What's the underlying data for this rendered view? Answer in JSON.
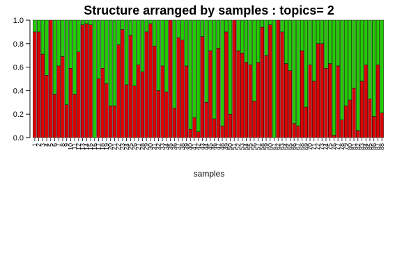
{
  "chart_data": {
    "type": "bar",
    "stacked": true,
    "title": "Structure arranged by samples : topics= 2",
    "xlabel": "samples",
    "ylabel": "",
    "ylim": [
      0,
      1
    ],
    "yticks": [
      "0.0",
      "0.2",
      "0.4",
      "0.6",
      "0.8",
      "1.0"
    ],
    "categories": [
      "1",
      "2",
      "3",
      "4",
      "5",
      "6",
      "7",
      "8",
      "9",
      "10",
      "11",
      "12",
      "13",
      "14",
      "15",
      "16",
      "17",
      "18",
      "19",
      "20",
      "21",
      "22",
      "23",
      "24",
      "25",
      "26",
      "27",
      "28",
      "29",
      "30",
      "31",
      "32",
      "33",
      "34",
      "35",
      "36",
      "37",
      "38",
      "39",
      "40",
      "41",
      "42",
      "43",
      "44",
      "45",
      "46",
      "47",
      "48",
      "49",
      "50",
      "51",
      "52",
      "53",
      "54",
      "55",
      "56",
      "57",
      "58",
      "59",
      "60",
      "61",
      "62",
      "63",
      "64",
      "65",
      "66",
      "67",
      "68",
      "69",
      "70",
      "71",
      "72",
      "73",
      "74",
      "75",
      "76",
      "77",
      "78",
      "79",
      "80",
      "81",
      "82",
      "83",
      "84",
      "85",
      "86",
      "87",
      "88"
    ],
    "series": [
      {
        "color": "#dd0000",
        "values": [
          0.9,
          0.9,
          0.71,
          0.53,
          1.0,
          0.37,
          0.61,
          0.69,
          0.28,
          0.59,
          0.37,
          0.73,
          0.96,
          0.97,
          0.96,
          0.0,
          0.5,
          0.59,
          0.46,
          0.27,
          0.27,
          0.79,
          0.92,
          0.45,
          0.87,
          0.44,
          0.62,
          0.56,
          0.9,
          0.97,
          0.78,
          0.4,
          0.61,
          0.39,
          1.0,
          0.25,
          0.85,
          0.83,
          0.61,
          0.07,
          0.17,
          0.05,
          0.86,
          0.3,
          0.74,
          0.16,
          0.76,
          0.1,
          0.9,
          0.2,
          1.0,
          0.74,
          0.72,
          0.64,
          0.62,
          0.31,
          0.64,
          0.94,
          0.7,
          0.96,
          0.0,
          1.0,
          0.9,
          0.63,
          0.57,
          0.12,
          0.1,
          0.74,
          0.26,
          0.62,
          0.48,
          0.8,
          0.8,
          0.59,
          0.63,
          0.02,
          0.61,
          0.15,
          0.27,
          0.32,
          0.42,
          0.06,
          0.48,
          0.62,
          0.33,
          0.18,
          0.62,
          0.21
        ]
      },
      {
        "color": "#22cc00",
        "values": [
          0.1,
          0.1,
          0.29,
          0.47,
          0.0,
          0.63,
          0.39,
          0.31,
          0.72,
          0.41,
          0.63,
          0.27,
          0.04,
          0.03,
          0.04,
          1.0,
          0.5,
          0.41,
          0.54,
          0.73,
          0.73,
          0.21,
          0.08,
          0.55,
          0.13,
          0.56,
          0.38,
          0.44,
          0.1,
          0.03,
          0.22,
          0.6,
          0.39,
          0.61,
          0.0,
          0.75,
          0.15,
          0.17,
          0.39,
          0.93,
          0.83,
          0.95,
          0.14,
          0.7,
          0.26,
          0.84,
          0.24,
          0.9,
          0.1,
          0.8,
          0.0,
          0.26,
          0.28,
          0.36,
          0.38,
          0.69,
          0.36,
          0.06,
          0.3,
          0.04,
          1.0,
          0.0,
          0.1,
          0.37,
          0.43,
          0.88,
          0.9,
          0.26,
          0.74,
          0.38,
          0.52,
          0.2,
          0.2,
          0.41,
          0.37,
          0.98,
          0.39,
          0.85,
          0.73,
          0.68,
          0.58,
          0.94,
          0.52,
          0.38,
          0.67,
          0.82,
          0.38,
          0.79
        ]
      }
    ]
  }
}
